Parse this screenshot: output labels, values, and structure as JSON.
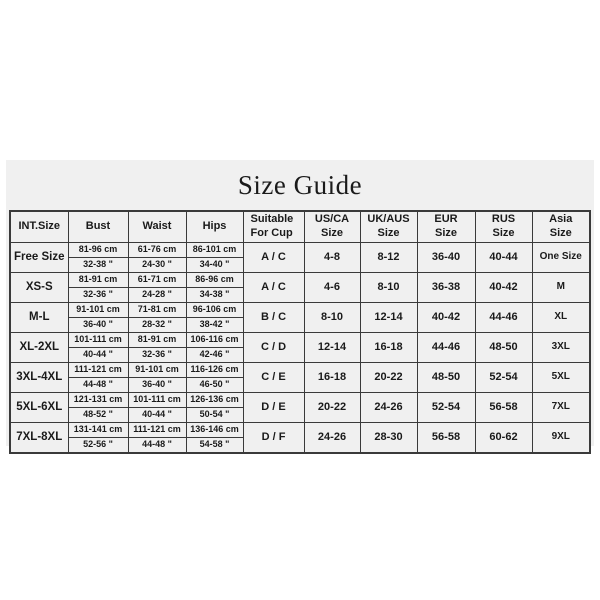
{
  "page": {
    "title": "Size Guide"
  },
  "colors": {
    "background": "#ffffff",
    "panel": "#f0f0f0",
    "border": "#3a3a3a",
    "text": "#1a1a1a"
  },
  "table": {
    "headers": {
      "int_size": "INT.Size",
      "bust": "Bust",
      "waist": "Waist",
      "hips": "Hips",
      "cup": "Suitable\nFor Cup",
      "us": "US/CA\nSize",
      "uk": "UK/AUS\nSize",
      "eur": "EUR\nSize",
      "rus": "RUS\nSize",
      "asia": "Asia\nSize"
    },
    "rows": [
      {
        "size": "Free Size",
        "bust_cm": "81-96 cm",
        "bust_in": "32-38 \"",
        "waist_cm": "61-76 cm",
        "waist_in": "24-30 \"",
        "hips_cm": "86-101 cm",
        "hips_in": "34-40 \"",
        "cup": "A / C",
        "us": "4-8",
        "uk": "8-12",
        "eur": "36-40",
        "rus": "40-44",
        "asia": "One Size"
      },
      {
        "size": "XS-S",
        "bust_cm": "81-91 cm",
        "bust_in": "32-36 \"",
        "waist_cm": "61-71 cm",
        "waist_in": "24-28 \"",
        "hips_cm": "86-96 cm",
        "hips_in": "34-38 \"",
        "cup": "A / C",
        "us": "4-6",
        "uk": "8-10",
        "eur": "36-38",
        "rus": "40-42",
        "asia": "M"
      },
      {
        "size": "M-L",
        "bust_cm": "91-101 cm",
        "bust_in": "36-40 \"",
        "waist_cm": "71-81 cm",
        "waist_in": "28-32 \"",
        "hips_cm": "96-106 cm",
        "hips_in": "38-42 \"",
        "cup": "B / C",
        "us": "8-10",
        "uk": "12-14",
        "eur": "40-42",
        "rus": "44-46",
        "asia": "XL"
      },
      {
        "size": "XL-2XL",
        "bust_cm": "101-111 cm",
        "bust_in": "40-44 \"",
        "waist_cm": "81-91 cm",
        "waist_in": "32-36 \"",
        "hips_cm": "106-116 cm",
        "hips_in": "42-46 \"",
        "cup": "C / D",
        "us": "12-14",
        "uk": "16-18",
        "eur": "44-46",
        "rus": "48-50",
        "asia": "3XL"
      },
      {
        "size": "3XL-4XL",
        "bust_cm": "111-121 cm",
        "bust_in": "44-48 \"",
        "waist_cm": "91-101 cm",
        "waist_in": "36-40 \"",
        "hips_cm": "116-126 cm",
        "hips_in": "46-50 \"",
        "cup": "C / E",
        "us": "16-18",
        "uk": "20-22",
        "eur": "48-50",
        "rus": "52-54",
        "asia": "5XL"
      },
      {
        "size": "5XL-6XL",
        "bust_cm": "121-131 cm",
        "bust_in": "48-52 \"",
        "waist_cm": "101-111 cm",
        "waist_in": "40-44 \"",
        "hips_cm": "126-136 cm",
        "hips_in": "50-54 \"",
        "cup": "D / E",
        "us": "20-22",
        "uk": "24-26",
        "eur": "52-54",
        "rus": "56-58",
        "asia": "7XL"
      },
      {
        "size": "7XL-8XL",
        "bust_cm": "131-141 cm",
        "bust_in": "52-56 \"",
        "waist_cm": "111-121 cm",
        "waist_in": "44-48 \"",
        "hips_cm": "136-146 cm",
        "hips_in": "54-58 \"",
        "cup": "D / F",
        "us": "24-26",
        "uk": "28-30",
        "eur": "56-58",
        "rus": "60-62",
        "asia": "9XL"
      }
    ]
  }
}
